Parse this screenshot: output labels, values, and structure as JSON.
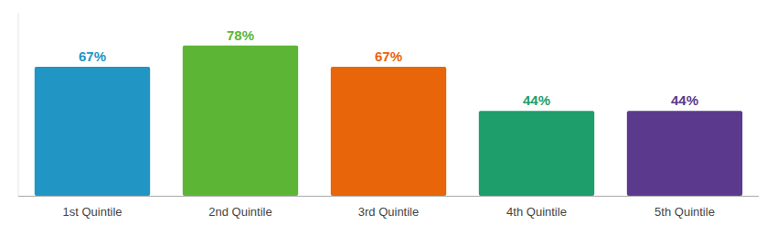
{
  "chart_data": {
    "type": "bar",
    "categories": [
      "1st Quintile",
      "2nd Quintile",
      "3rd Quintile",
      "4th Quintile",
      "5th Quintile"
    ],
    "values": [
      67,
      78,
      67,
      44,
      44
    ],
    "value_labels": [
      "67%",
      "78%",
      "67%",
      "44%",
      "44%"
    ],
    "colors": [
      "#2196C4",
      "#5DB535",
      "#E8650A",
      "#1E9E6B",
      "#5B3A8E"
    ],
    "ylim": [
      0,
      95
    ],
    "data_labels": true,
    "tick_labels": "x"
  }
}
